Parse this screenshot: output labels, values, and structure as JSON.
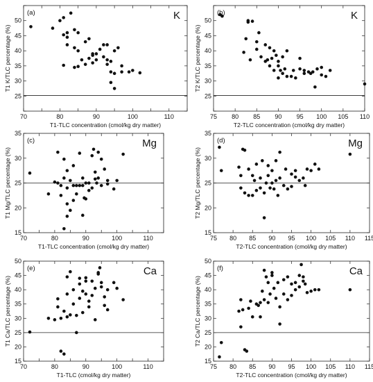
{
  "chart_data": [
    {
      "type": "scatter",
      "panel": "(a)",
      "element": "K",
      "xlabel": "T1-TLC concentration (cmol/kg dry matter)",
      "ylabel": "T1 K/TLC percentage (%)",
      "xlim": [
        70,
        115
      ],
      "ylim": [
        20,
        55
      ],
      "xticks": [
        70,
        75,
        80,
        85,
        90,
        95,
        100,
        105,
        110,
        115
      ],
      "xtick_labels": [
        "70",
        "",
        "80",
        "",
        "90",
        "",
        "100",
        "",
        "110",
        ""
      ],
      "yticks": [
        20,
        25,
        30,
        35,
        40,
        45,
        50,
        55
      ],
      "ytick_labels": [
        "",
        "25",
        "30",
        "35",
        "40",
        "45",
        "50",
        ""
      ],
      "refline": 25.2,
      "grid": false,
      "x": [
        72,
        78,
        80,
        81,
        81,
        82,
        82,
        81,
        83,
        82,
        84,
        84,
        85,
        85,
        85,
        87,
        87,
        84,
        86,
        88,
        88,
        89,
        89,
        90,
        90,
        91,
        92,
        92,
        93,
        93,
        94,
        94,
        94,
        95,
        95,
        96,
        95,
        97,
        97,
        99,
        100,
        102,
        89,
        93
      ],
      "y": [
        48,
        47.5,
        50,
        45.3,
        51,
        44.5,
        42,
        35.2,
        52.5,
        46,
        47,
        41,
        40,
        46,
        34.8,
        43,
        35.5,
        34.5,
        37,
        44,
        37.5,
        38.5,
        36,
        39,
        37,
        40.5,
        42,
        38,
        37,
        35.5,
        36.5,
        33,
        29.5,
        32.5,
        27.5,
        41,
        40,
        35,
        33,
        33,
        33.5,
        32.7,
        39,
        42
      ]
    },
    {
      "type": "scatter",
      "panel": "(b)",
      "element": "K",
      "xlabel": "T2-TLC concentration (cmol/kg dry matter)",
      "ylabel": "T2 K/TLC percentage (%)",
      "xlim": [
        75,
        110
      ],
      "ylim": [
        20,
        55
      ],
      "xticks": [
        75,
        80,
        85,
        90,
        95,
        100,
        105,
        110
      ],
      "xtick_labels": [
        "75",
        "80",
        "85",
        "90",
        "95",
        "100",
        "105",
        "110"
      ],
      "yticks": [
        20,
        25,
        30,
        35,
        40,
        45,
        50,
        55
      ],
      "ytick_labels": [
        "",
        "25",
        "30",
        "35",
        "40",
        "45",
        "50",
        ""
      ],
      "refline": 25.2,
      "grid": false,
      "x": [
        76.5,
        77,
        82,
        82.5,
        83,
        83,
        83.5,
        84,
        85,
        85,
        85.5,
        86,
        87,
        87,
        87.5,
        88,
        88,
        88.5,
        89,
        89,
        89.5,
        90,
        90,
        90.5,
        91,
        91,
        91.5,
        92,
        92,
        93,
        93.5,
        94,
        95,
        95,
        96,
        96,
        97,
        97.5,
        98,
        98.5,
        99,
        100,
        100,
        101,
        102,
        110,
        90
      ],
      "y": [
        52,
        51.5,
        39.5,
        44,
        49.5,
        50,
        37,
        49.8,
        43,
        40.5,
        46,
        38,
        42,
        36.5,
        37,
        35,
        41,
        37.5,
        33.5,
        40,
        38.5,
        35,
        31,
        33.5,
        32.5,
        38,
        34,
        40,
        31.5,
        31.5,
        33.5,
        31,
        37.5,
        34,
        33.5,
        32.5,
        33,
        32.5,
        33,
        28,
        34,
        34.5,
        32,
        31.5,
        33.5,
        29,
        36.5
      ]
    },
    {
      "type": "scatter",
      "panel": "(c)",
      "element": "Mg",
      "xlabel": "T1-TLC concentration (cmol/kg dry matter)",
      "ylabel": "T1 Mg/TLC percentage (%)",
      "xlim": [
        70,
        115
      ],
      "ylim": [
        15,
        35
      ],
      "xticks": [
        70,
        75,
        80,
        85,
        90,
        95,
        100,
        105,
        110,
        115
      ],
      "xtick_labels": [
        "70",
        "",
        "80",
        "",
        "90",
        "",
        "100",
        "",
        "110",
        ""
      ],
      "yticks": [
        15,
        20,
        25,
        30,
        35
      ],
      "ytick_labels": [
        "15",
        "20",
        "25",
        "30",
        "35"
      ],
      "refline": 25,
      "grid": false,
      "x": [
        72,
        78,
        80,
        81,
        81,
        82,
        82,
        83,
        83,
        83,
        84,
        84,
        84,
        85,
        85,
        86,
        86,
        87,
        87,
        88,
        88,
        89,
        89,
        89.5,
        90,
        90,
        91,
        91,
        92,
        92,
        92.5,
        93,
        93,
        93.5,
        94,
        94,
        95,
        95,
        96,
        97,
        97,
        99,
        100,
        102,
        84,
        86,
        89
      ],
      "y": [
        27,
        22.8,
        25.2,
        25,
        31.2,
        24.5,
        22.5,
        29.8,
        26,
        15.8,
        27.5,
        20.8,
        24,
        25.5,
        19.5,
        21.5,
        28.5,
        22.8,
        24.5,
        31,
        24.5,
        26,
        24.5,
        22,
        25,
        21.8,
        25,
        23.5,
        30.5,
        24,
        31.8,
        25.8,
        27.2,
        25,
        31.2,
        26,
        24.5,
        29.8,
        27.8,
        25.5,
        24.8,
        23.8,
        25.5,
        30.8,
        18.3,
        24.5,
        18.5
      ]
    },
    {
      "type": "scatter",
      "panel": "(d)",
      "element": "Mg",
      "xlabel": "T2-TLC concentration (cmol/kg dry matter)",
      "ylabel": "T2 Mg/TLC percentage (%)",
      "xlim": [
        75,
        115
      ],
      "ylim": [
        15,
        35
      ],
      "xticks": [
        75,
        80,
        85,
        90,
        95,
        100,
        105,
        110,
        115
      ],
      "xtick_labels": [
        "75",
        "80",
        "85",
        "90",
        "95",
        "100",
        "105",
        "110",
        "115"
      ],
      "yticks": [
        15,
        20,
        25,
        30,
        35
      ],
      "ytick_labels": [
        "15",
        "20",
        "25",
        "30",
        "35"
      ],
      "refline": 25,
      "grid": false,
      "x": [
        76.5,
        77,
        81.5,
        82,
        82,
        82.5,
        83,
        83,
        84,
        84,
        85,
        85,
        85.5,
        86,
        86,
        87,
        87,
        87.5,
        88,
        88,
        88.5,
        89,
        89,
        89.5,
        90,
        90,
        90.5,
        91,
        91,
        91.5,
        92,
        92,
        93,
        93.5,
        94,
        95,
        95,
        96,
        96,
        97,
        98,
        98.5,
        99,
        100,
        101,
        102,
        110
      ],
      "y": [
        32.2,
        27.5,
        28.2,
        24,
        26.5,
        31.8,
        31.6,
        23,
        22.5,
        27.8,
        26.5,
        22.5,
        25.5,
        23.5,
        28.8,
        26,
        24,
        29.5,
        18,
        23,
        25,
        28.5,
        26.5,
        24,
        27.5,
        25,
        23.8,
        25.5,
        29.5,
        22.5,
        26,
        31.2,
        24.5,
        27.8,
        23.8,
        24.3,
        26.8,
        26.2,
        27.5,
        25.5,
        26,
        24.5,
        27.8,
        27.5,
        28.8,
        27.8,
        30.8
      ]
    },
    {
      "type": "scatter",
      "panel": "(e)",
      "element": "Ca",
      "xlabel": "T1-TLC (cmol/kg dry matter)",
      "ylabel": "T1 Ca/TLC percentage (%)",
      "xlim": [
        70,
        115
      ],
      "ylim": [
        15,
        50
      ],
      "xticks": [
        70,
        75,
        80,
        85,
        90,
        95,
        100,
        105,
        110,
        115
      ],
      "xtick_labels": [
        "70",
        "",
        "80",
        "",
        "90",
        "",
        "100",
        "",
        "110",
        ""
      ],
      "yticks": [
        15,
        20,
        25,
        30,
        35,
        40,
        45,
        50
      ],
      "ytick_labels": [
        "15",
        "20",
        "25",
        "30",
        "35",
        "40",
        "45",
        "50"
      ],
      "refline": 25,
      "grid": false,
      "x": [
        72,
        78,
        80,
        81,
        81,
        82,
        82,
        83,
        83,
        84,
        84,
        84,
        85,
        85,
        86,
        86,
        87,
        87,
        88,
        88,
        89,
        89,
        90,
        90,
        91,
        91,
        92,
        92,
        93,
        93,
        94,
        94,
        94.5,
        95,
        95,
        96,
        96,
        97,
        97,
        99,
        100,
        102,
        88,
        90
      ],
      "y": [
        25.2,
        30,
        29.5,
        34,
        36.8,
        30,
        18.5,
        17.5,
        32.5,
        44.5,
        38.5,
        30.5,
        46.3,
        31.2,
        40,
        35,
        25,
        31,
        42,
        37,
        39.5,
        32,
        44.2,
        38.5,
        36,
        34,
        38,
        43,
        40.5,
        29.5,
        45.5,
        46,
        47.7,
        42.5,
        41,
        37.5,
        34.5,
        40,
        33,
        42.5,
        40.5,
        36.5,
        44,
        43
      ]
    },
    {
      "type": "scatter",
      "panel": "(f)",
      "element": "Ca",
      "xlabel": "T2-TLC concentration (cmol/kg dry matter)",
      "ylabel": "T2 Ca/TLC percentage (%)",
      "xlim": [
        75,
        115
      ],
      "ylim": [
        15,
        50
      ],
      "xticks": [
        75,
        80,
        85,
        90,
        95,
        100,
        105,
        110,
        115
      ],
      "xtick_labels": [
        "75",
        "80",
        "85",
        "90",
        "95",
        "100",
        "105",
        "110",
        "115"
      ],
      "yticks": [
        15,
        20,
        25,
        30,
        35,
        40,
        45,
        50
      ],
      "ytick_labels": [
        "15",
        "20",
        "25",
        "30",
        "35",
        "40",
        "45",
        "50"
      ],
      "refline": 25,
      "grid": false,
      "x": [
        76.5,
        77,
        81.5,
        82,
        82,
        82.5,
        83,
        83.5,
        84,
        84.5,
        85,
        86,
        86.5,
        87,
        87,
        87.5,
        88,
        88,
        88.5,
        89,
        89,
        89.5,
        90,
        90,
        90.5,
        91,
        91.5,
        92,
        92,
        93,
        93,
        94,
        94,
        95,
        95,
        96,
        96,
        97,
        97,
        97.5,
        98,
        98,
        98.5,
        99,
        100,
        101,
        102,
        110
      ],
      "y": [
        16.5,
        21.5,
        32.5,
        27,
        36.5,
        33,
        19,
        18.5,
        33.5,
        36,
        30.5,
        35,
        34.5,
        30.5,
        35.5,
        39.5,
        46.8,
        36.5,
        44.5,
        42.5,
        35.5,
        38.5,
        45,
        46,
        40.5,
        37,
        42.5,
        34,
        28,
        43.5,
        38.5,
        44.5,
        36.5,
        42,
        38,
        42.5,
        40,
        45,
        41,
        48.8,
        43,
        44.5,
        42,
        39,
        39.5,
        40,
        40,
        40
      ]
    }
  ]
}
